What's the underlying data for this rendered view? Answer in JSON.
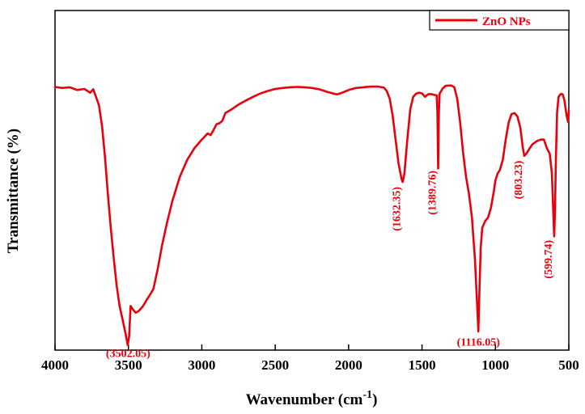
{
  "chart_data": {
    "type": "line",
    "xlabel": "Wavenumber (cm",
    "xlabel_sup": "-1",
    "xlabel_close": ")",
    "ylabel": "Transmittance  (%)",
    "xlim": [
      4000,
      500
    ],
    "x_reversed": true,
    "ylim": [
      0,
      100
    ],
    "y_ticks_shown": false,
    "grid": false,
    "legend_position": "top-right",
    "line_color": "#e8000b",
    "x_ticks": [
      4000,
      3500,
      3000,
      2500,
      2000,
      1500,
      1000,
      500
    ],
    "series": [
      {
        "name": "ZnO NPs",
        "points": [
          [
            4000,
            77.5
          ],
          [
            3950,
            77.2
          ],
          [
            3900,
            77.4
          ],
          [
            3850,
            76.6
          ],
          [
            3800,
            76.9
          ],
          [
            3760,
            75.8
          ],
          [
            3740,
            76.8
          ],
          [
            3720,
            74.5
          ],
          [
            3700,
            72
          ],
          [
            3680,
            66
          ],
          [
            3660,
            57
          ],
          [
            3640,
            46
          ],
          [
            3620,
            36
          ],
          [
            3600,
            27
          ],
          [
            3580,
            19
          ],
          [
            3560,
            13
          ],
          [
            3540,
            9
          ],
          [
            3520,
            5
          ],
          [
            3505,
            1.5
          ],
          [
            3495,
            4
          ],
          [
            3485,
            13
          ],
          [
            3470,
            12
          ],
          [
            3450,
            11
          ],
          [
            3430,
            11.5
          ],
          [
            3400,
            13
          ],
          [
            3380,
            14.5
          ],
          [
            3350,
            16.5
          ],
          [
            3330,
            18
          ],
          [
            3300,
            24
          ],
          [
            3270,
            31
          ],
          [
            3240,
            37
          ],
          [
            3200,
            44
          ],
          [
            3150,
            51
          ],
          [
            3100,
            56
          ],
          [
            3050,
            59.5
          ],
          [
            3000,
            62
          ],
          [
            2960,
            63.8
          ],
          [
            2940,
            63.3
          ],
          [
            2920,
            64.8
          ],
          [
            2900,
            66.5
          ],
          [
            2880,
            66.8
          ],
          [
            2860,
            67.5
          ],
          [
            2840,
            69.8
          ],
          [
            2800,
            70.8
          ],
          [
            2750,
            72.3
          ],
          [
            2700,
            73.5
          ],
          [
            2650,
            74.6
          ],
          [
            2600,
            75.6
          ],
          [
            2550,
            76.3
          ],
          [
            2500,
            76.9
          ],
          [
            2450,
            77.2
          ],
          [
            2400,
            77.4
          ],
          [
            2350,
            77.5
          ],
          [
            2300,
            77.4
          ],
          [
            2250,
            77.2
          ],
          [
            2200,
            76.8
          ],
          [
            2150,
            76.1
          ],
          [
            2100,
            75.5
          ],
          [
            2080,
            75.3
          ],
          [
            2050,
            75.7
          ],
          [
            2000,
            76.6
          ],
          [
            1950,
            77.2
          ],
          [
            1900,
            77.4
          ],
          [
            1850,
            77.6
          ],
          [
            1800,
            77.6
          ],
          [
            1760,
            77.3
          ],
          [
            1740,
            76.3
          ],
          [
            1720,
            74
          ],
          [
            1700,
            69
          ],
          [
            1680,
            62
          ],
          [
            1660,
            55
          ],
          [
            1640,
            50.5
          ],
          [
            1632,
            49.5
          ],
          [
            1620,
            52
          ],
          [
            1600,
            62
          ],
          [
            1580,
            71
          ],
          [
            1560,
            74.6
          ],
          [
            1540,
            75.5
          ],
          [
            1520,
            75.8
          ],
          [
            1500,
            75.6
          ],
          [
            1480,
            74.6
          ],
          [
            1460,
            75.3
          ],
          [
            1440,
            75.4
          ],
          [
            1420,
            75.2
          ],
          [
            1400,
            75
          ],
          [
            1395,
            70
          ],
          [
            1390,
            53.5
          ],
          [
            1385,
            70
          ],
          [
            1380,
            75.5
          ],
          [
            1360,
            77
          ],
          [
            1340,
            77.8
          ],
          [
            1320,
            77.9
          ],
          [
            1300,
            77.9
          ],
          [
            1280,
            77.4
          ],
          [
            1260,
            74
          ],
          [
            1240,
            67
          ],
          [
            1220,
            58
          ],
          [
            1200,
            51
          ],
          [
            1180,
            46
          ],
          [
            1160,
            39
          ],
          [
            1140,
            27
          ],
          [
            1125,
            14
          ],
          [
            1116,
            5.5
          ],
          [
            1108,
            19
          ],
          [
            1100,
            30
          ],
          [
            1090,
            36
          ],
          [
            1070,
            38
          ],
          [
            1050,
            39
          ],
          [
            1030,
            42
          ],
          [
            1010,
            47
          ],
          [
            1000,
            50
          ],
          [
            985,
            52
          ],
          [
            970,
            53
          ],
          [
            950,
            56
          ],
          [
            930,
            62
          ],
          [
            910,
            67
          ],
          [
            890,
            69.5
          ],
          [
            870,
            69.8
          ],
          [
            850,
            68.8
          ],
          [
            830,
            65.5
          ],
          [
            815,
            60
          ],
          [
            803,
            57.2
          ],
          [
            790,
            57.8
          ],
          [
            770,
            59.2
          ],
          [
            750,
            60.5
          ],
          [
            720,
            61.5
          ],
          [
            690,
            62
          ],
          [
            670,
            62
          ],
          [
            650,
            59.5
          ],
          [
            630,
            57.8
          ],
          [
            615,
            52
          ],
          [
            605,
            40
          ],
          [
            600,
            33.5
          ],
          [
            595,
            40
          ],
          [
            588,
            56
          ],
          [
            580,
            70
          ],
          [
            570,
            74.5
          ],
          [
            560,
            75.2
          ],
          [
            550,
            75.5
          ],
          [
            540,
            75.2
          ],
          [
            530,
            73.5
          ],
          [
            515,
            69
          ],
          [
            505,
            67.2
          ],
          [
            500,
            70.5
          ]
        ]
      }
    ],
    "annotations": [
      {
        "label": "(3502.05)",
        "x": 3502.05,
        "orientation": "horizontal"
      },
      {
        "label": "(1632.35)",
        "x": 1632.35,
        "orientation": "vertical"
      },
      {
        "label": "(1389.76)",
        "x": 1389.76,
        "orientation": "vertical"
      },
      {
        "label": "(1116.05)",
        "x": 1116.05,
        "orientation": "horizontal"
      },
      {
        "label": "(803.23)",
        "x": 803.23,
        "orientation": "vertical"
      },
      {
        "label": "(599.74)",
        "x": 599.74,
        "orientation": "vertical"
      }
    ]
  }
}
